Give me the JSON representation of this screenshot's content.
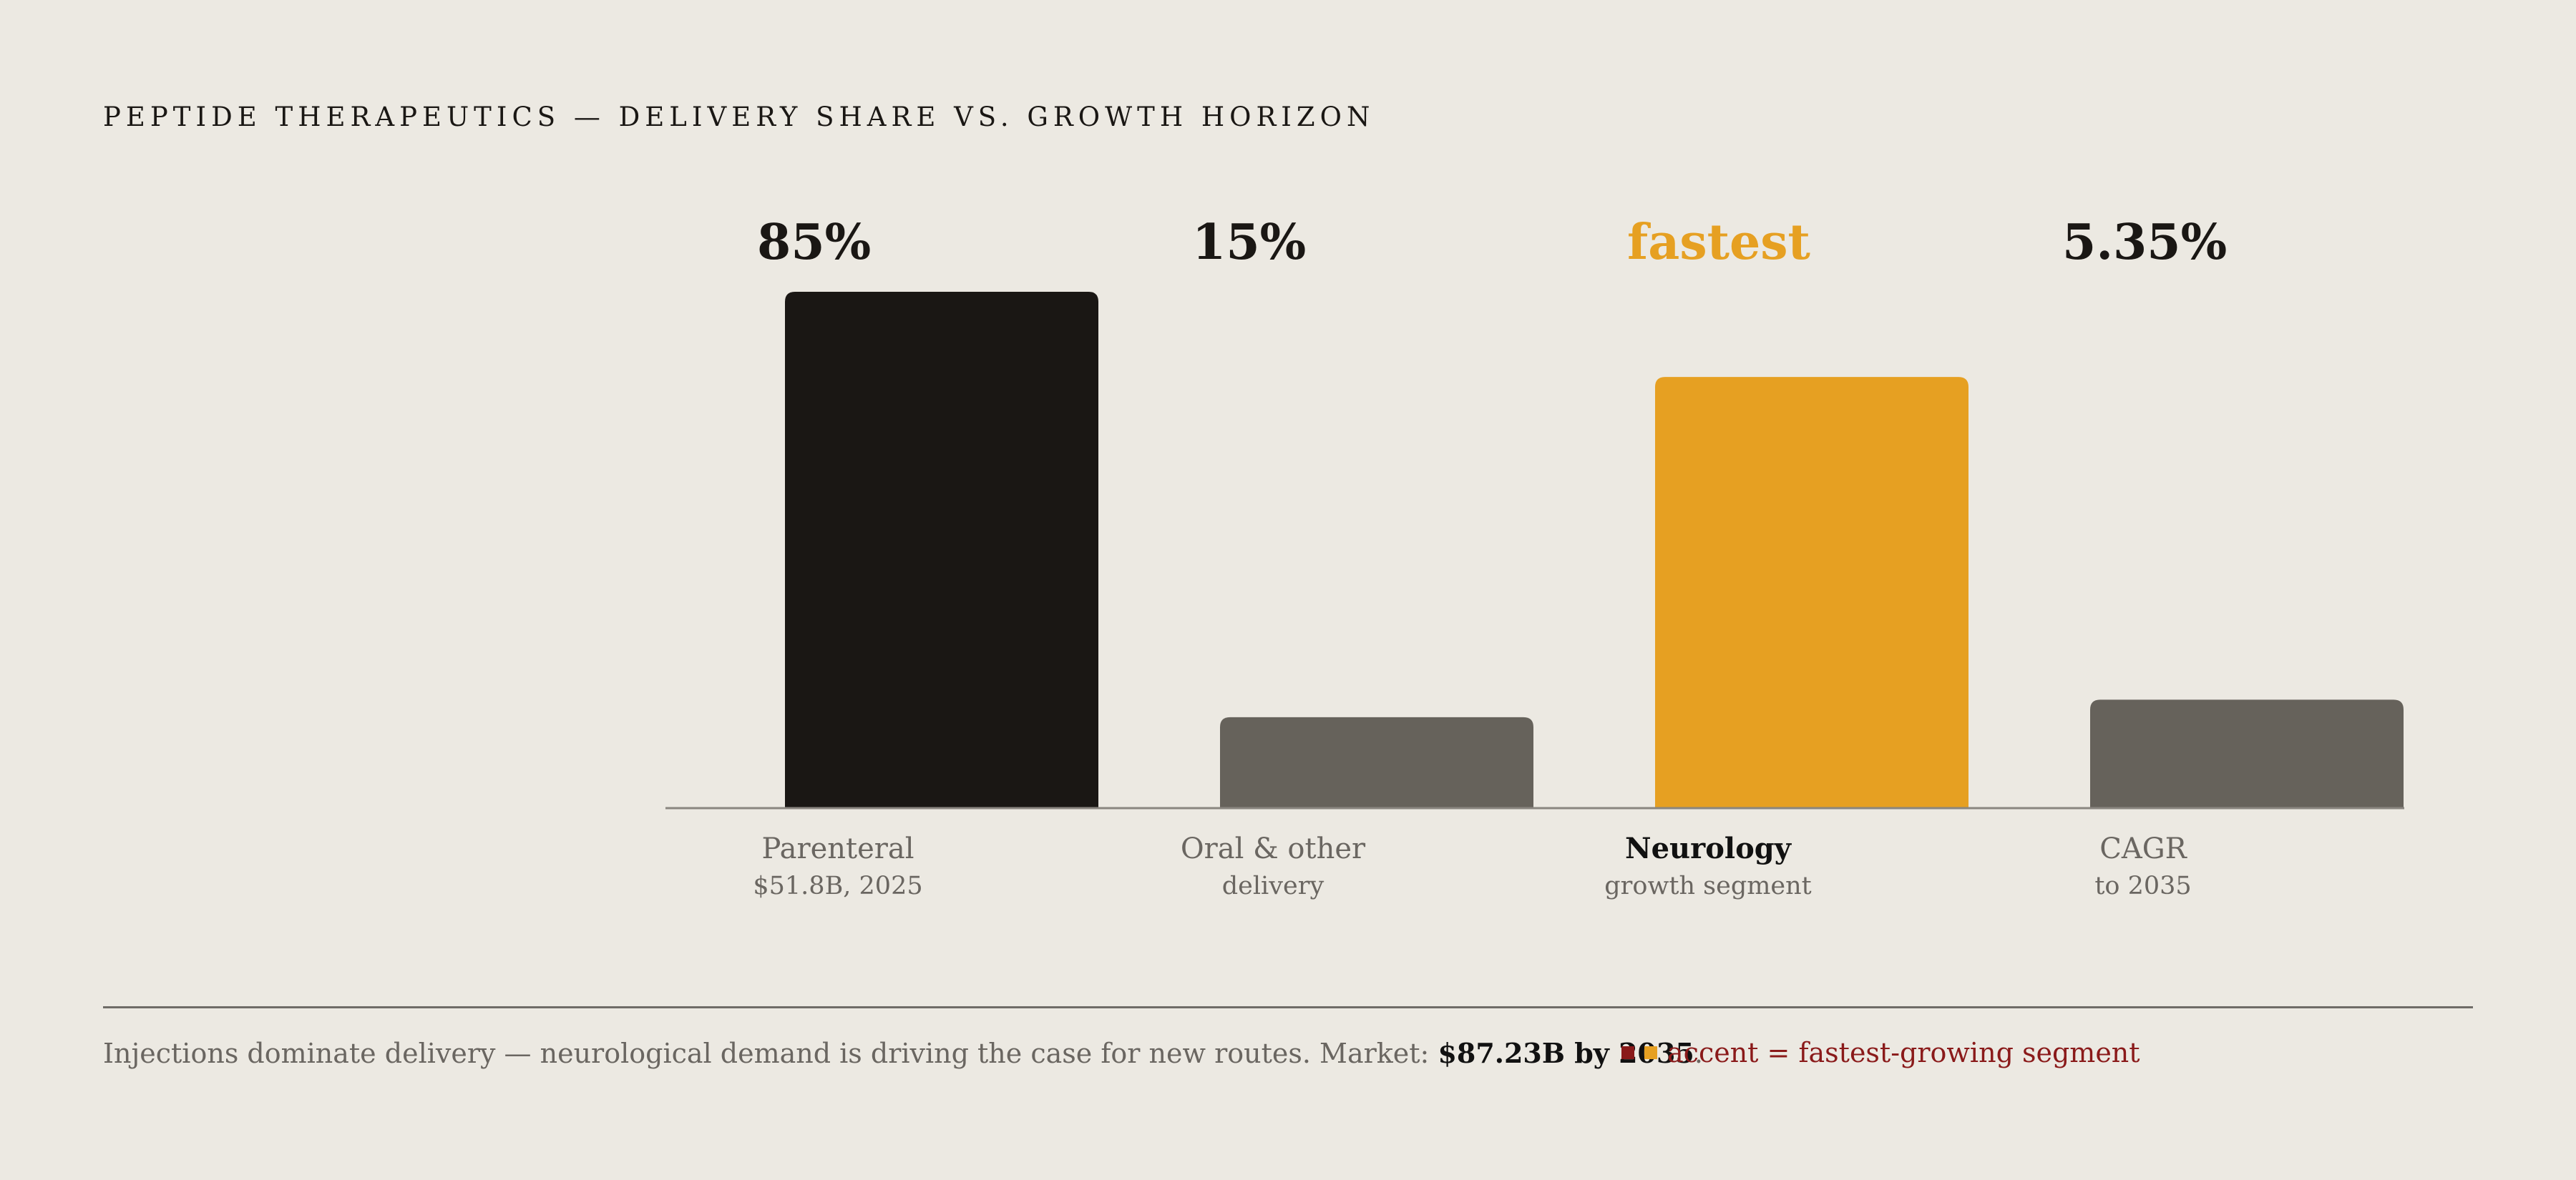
{
  "header": {
    "title": "Peptide Therapeutics — Delivery Share vs. Growth Horizon"
  },
  "chart_data": {
    "type": "bar",
    "categories": [
      "Parenteral",
      "Oral & other delivery",
      "Neurology",
      "CAGR"
    ],
    "bars": [
      {
        "value_label": "85%",
        "label_line1": "Parenteral",
        "label_line2": "$51.8B, 2025",
        "relative_height": 1.0,
        "color": "#1a1714",
        "label_emphasis": false,
        "value_color": "#1a1714"
      },
      {
        "value_label": "15%",
        "label_line1": "Oral & other",
        "label_line2": "delivery",
        "relative_height": 0.176,
        "color": "#66625b",
        "label_emphasis": false,
        "value_color": "#1a1714"
      },
      {
        "value_label": "fastest",
        "label_line1": "Neurology",
        "label_line2": "growth segment",
        "relative_height": 0.835,
        "color": "#e6a022",
        "label_emphasis": true,
        "value_color": "#e6a022"
      },
      {
        "value_label": "5.35%",
        "label_line1": "CAGR",
        "label_line2": "to 2035",
        "relative_height": 0.21,
        "color": "#66625b",
        "label_emphasis": false,
        "value_color": "#1a1714"
      }
    ],
    "grid": false,
    "legend_placement": "bottom"
  },
  "footer": {
    "caption_prefix": "Injections dominate delivery — neurological demand is driving the case for new routes. Market: ",
    "caption_highlight": "$87.23B by 2035",
    "caption_suffix": ".",
    "legend_text": "accent = fastest-growing segment",
    "legend_swatch_colors": [
      "#8a1a1a",
      "#e6a022"
    ]
  },
  "colors": {
    "background": "#ece9e2",
    "dark": "#1a1714",
    "accent": "#e6a022",
    "muted": "#66625b",
    "legend_text": "#8a1a1a"
  }
}
